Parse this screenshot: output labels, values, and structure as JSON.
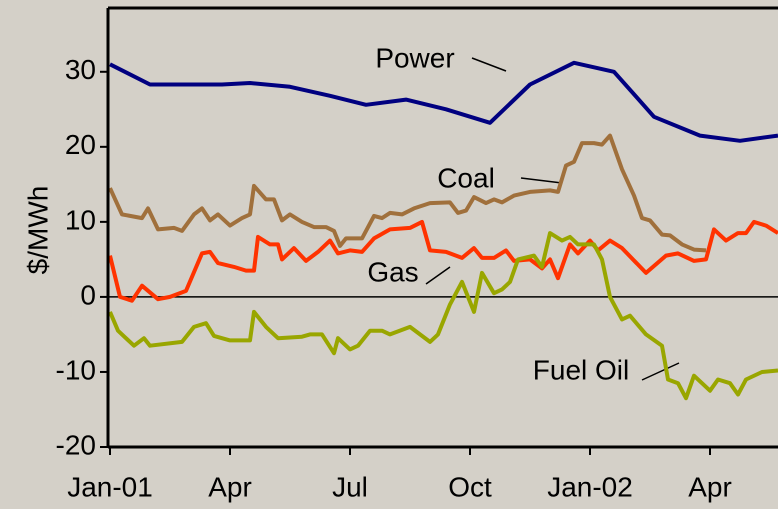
{
  "chart_data": {
    "type": "line",
    "y_label": "$/MWh",
    "xlim": [
      -0.05,
      16.7
    ],
    "xticks": [
      {
        "value": 0,
        "label": "Jan-01"
      },
      {
        "value": 3,
        "label": "Apr"
      },
      {
        "value": 6,
        "label": "Jul"
      },
      {
        "value": 9,
        "label": "Oct"
      },
      {
        "value": 12,
        "label": "Jan-02"
      },
      {
        "value": 15,
        "label": "Apr"
      }
    ],
    "ylim": [
      -20,
      38.5
    ],
    "yticks": [
      -20,
      -10,
      0,
      10,
      20,
      30
    ],
    "grid": false,
    "zero_line": true,
    "annotations": [
      "Power",
      "Coal",
      "Gas",
      "Fuel Oil"
    ],
    "series": [
      {
        "name": "Power",
        "color": "#000080",
        "x": [
          0,
          1,
          2.8,
          3.5,
          4.5,
          5.5,
          6.4,
          7.4,
          8.4,
          9.5,
          10.5,
          11.6,
          12.6,
          13.6,
          14.75,
          15.75,
          16.7
        ],
        "values": [
          31,
          28.3,
          28.3,
          28.5,
          28,
          26.8,
          25.6,
          26.3,
          25,
          23.2,
          28.3,
          31.2,
          30,
          24,
          21.5,
          20.8,
          21.5
        ]
      },
      {
        "name": "Coal",
        "color": "#a0703c",
        "x": [
          0,
          0.3,
          0.8,
          0.95,
          1.2,
          1.6,
          1.8,
          2.1,
          2.3,
          2.5,
          2.7,
          3,
          3.3,
          3.5,
          3.6,
          3.9,
          4.1,
          4.3,
          4.5,
          4.8,
          5.1,
          5.4,
          5.6,
          5.75,
          5.9,
          6.3,
          6.6,
          6.8,
          7,
          7.3,
          7.6,
          8,
          8.5,
          8.7,
          8.9,
          9.1,
          9.4,
          9.6,
          9.8,
          10.1,
          10.5,
          11,
          11.2,
          11.4,
          11.6,
          11.8,
          12.1,
          12.3,
          12.5,
          12.8,
          13.1,
          13.3,
          13.5,
          13.8,
          14,
          14.3,
          14.6,
          14.9
        ],
        "values": [
          14.5,
          11,
          10.5,
          11.8,
          9,
          9.2,
          8.8,
          11,
          11.8,
          10.2,
          11,
          9.5,
          10.5,
          11,
          14.8,
          13,
          13,
          10.2,
          11,
          10,
          9.3,
          9.3,
          8.8,
          6.8,
          7.8,
          7.8,
          10.8,
          10.5,
          11.2,
          11,
          11.8,
          12.5,
          12.6,
          11.2,
          11.5,
          13.3,
          12.5,
          13,
          12.6,
          13.5,
          14,
          14.2,
          14,
          17.5,
          18,
          20.5,
          20.5,
          20.3,
          21.5,
          17,
          13.5,
          10.5,
          10.2,
          8.3,
          8.2,
          7,
          6.3,
          6.2
        ]
      },
      {
        "name": "Gas",
        "color": "#ff3300",
        "x": [
          0,
          0.25,
          0.55,
          0.8,
          1.2,
          1.5,
          1.9,
          2.3,
          2.5,
          2.7,
          3.1,
          3.4,
          3.6,
          3.7,
          4,
          4.2,
          4.3,
          4.6,
          4.9,
          5.2,
          5.5,
          5.7,
          6,
          6.3,
          6.6,
          7,
          7.5,
          7.8,
          8,
          8.4,
          8.8,
          9.1,
          9.3,
          9.6,
          9.9,
          10.1,
          10.5,
          10.8,
          11,
          11.2,
          11.5,
          11.7,
          12,
          12.2,
          12.5,
          12.8,
          13.4,
          13.9,
          14.2,
          14.6,
          14.9,
          15.1,
          15.4,
          15.7,
          15.9,
          16.1,
          16.4,
          16.7
        ],
        "values": [
          5.5,
          0,
          -0.5,
          1.5,
          -0.3,
          0,
          0.8,
          5.8,
          6,
          4.5,
          4,
          3.5,
          3.5,
          8,
          7,
          7,
          5,
          6.5,
          4.8,
          6,
          7.5,
          5.8,
          6.2,
          6,
          7.8,
          9,
          9.2,
          10,
          6.2,
          6,
          5.2,
          6.5,
          5.2,
          5.2,
          6.2,
          4.8,
          5,
          3.8,
          5,
          2.5,
          7,
          5.8,
          7.5,
          6.2,
          7.5,
          6.5,
          3.2,
          5.5,
          5.8,
          4.8,
          5,
          9,
          7.5,
          8.5,
          8.5,
          10,
          9.5,
          8.5
        ]
      },
      {
        "name": "Fuel Oil",
        "color": "#99a600",
        "x": [
          0,
          0.2,
          0.6,
          0.85,
          1,
          1.8,
          2.1,
          2.4,
          2.6,
          3,
          3.5,
          3.6,
          3.9,
          4.2,
          4.8,
          5,
          5.3,
          5.6,
          5.7,
          6,
          6.2,
          6.5,
          6.8,
          7,
          7.5,
          8,
          8.2,
          8.5,
          8.8,
          9.1,
          9.3,
          9.6,
          9.8,
          10,
          10.2,
          10.6,
          10.8,
          11,
          11.3,
          11.5,
          11.7,
          12.1,
          12.3,
          12.5,
          12.8,
          13,
          13.4,
          13.8,
          13.95,
          14.2,
          14.4,
          14.6,
          15,
          15.2,
          15.5,
          15.7,
          15.9,
          16.3,
          16.7
        ],
        "values": [
          -2,
          -4.5,
          -6.5,
          -5.5,
          -6.5,
          -6,
          -4,
          -3.5,
          -5.2,
          -5.8,
          -5.8,
          -2,
          -4,
          -5.5,
          -5.3,
          -5,
          -5,
          -7.5,
          -5.5,
          -7,
          -6.5,
          -4.5,
          -4.5,
          -5,
          -4,
          -6,
          -5,
          -1,
          2,
          -2,
          3.2,
          0.5,
          1,
          2,
          5,
          5.5,
          4,
          8.5,
          7.5,
          8,
          7,
          7,
          5,
          0,
          -3,
          -2.5,
          -5,
          -6.5,
          -11,
          -11.5,
          -13.5,
          -10.5,
          -12.5,
          -11,
          -11.5,
          -13,
          -11,
          -10,
          -9.8
        ]
      }
    ]
  }
}
